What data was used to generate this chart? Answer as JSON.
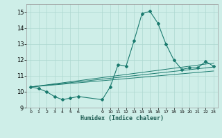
{
  "xlabel": "Humidex (Indice chaleur)",
  "background_color": "#ceeee8",
  "grid_color": "#aed8d0",
  "line_color": "#1a7a6e",
  "xlim": [
    -0.5,
    23.5
  ],
  "ylim": [
    9,
    15.5
  ],
  "yticks": [
    9,
    10,
    11,
    12,
    13,
    14,
    15
  ],
  "xtick_positions": [
    0,
    1,
    2,
    3,
    4,
    5,
    6,
    9,
    10,
    11,
    12,
    13,
    14,
    15,
    16,
    17,
    18,
    19,
    20,
    21,
    22,
    23
  ],
  "xtick_labels": [
    "0",
    "1",
    "2",
    "3",
    "4",
    "5",
    "6",
    "9",
    "10",
    "11",
    "12",
    "13",
    "14",
    "15",
    "16",
    "17",
    "18",
    "19",
    "20",
    "21",
    "22",
    "23"
  ],
  "series_main": {
    "x": [
      0,
      1,
      2,
      3,
      4,
      5,
      6,
      9,
      10,
      11,
      12,
      13,
      14,
      15,
      16,
      17,
      18,
      19,
      20,
      21,
      22,
      23
    ],
    "y": [
      10.3,
      10.2,
      10.0,
      9.7,
      9.5,
      9.6,
      9.7,
      9.5,
      10.3,
      11.7,
      11.6,
      13.2,
      14.9,
      15.05,
      14.3,
      13.0,
      12.0,
      11.4,
      11.5,
      11.5,
      11.9,
      11.6
    ]
  },
  "trend_lines": [
    {
      "x": [
        0,
        23
      ],
      "y": [
        10.3,
        11.8
      ]
    },
    {
      "x": [
        0,
        23
      ],
      "y": [
        10.3,
        11.55
      ]
    },
    {
      "x": [
        0,
        23
      ],
      "y": [
        10.3,
        11.3
      ]
    }
  ]
}
